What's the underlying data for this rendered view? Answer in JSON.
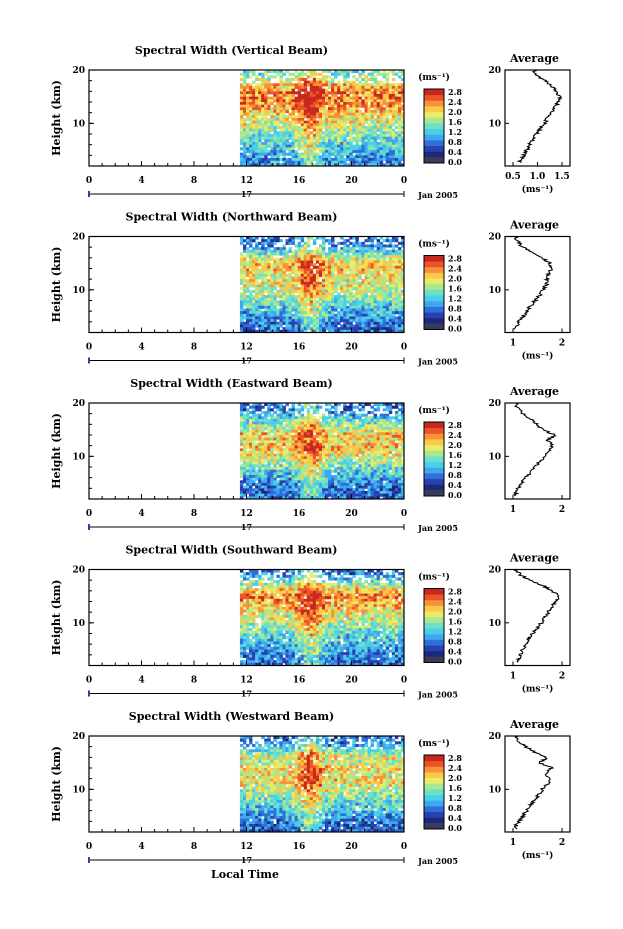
{
  "page": {
    "xaxis_label": "Local Time",
    "date_label": "Jan 2005",
    "day_label": "17"
  },
  "colors": {
    "colormap": [
      "#1a2a7a",
      "#2a3fb0",
      "#2f6fd8",
      "#3fa6f0",
      "#49cfe8",
      "#6fe0c8",
      "#a8e890",
      "#e8ec6a",
      "#fbc84a",
      "#f89238",
      "#ec5428",
      "#c8281e"
    ],
    "zero_color": "#3a3a5a",
    "profile_line": "#000000"
  },
  "chart_data": [
    {
      "type": "heatmap",
      "title": "Spectral Width (Vertical Beam)",
      "ylabel": "Height (km)",
      "xlim": [
        0,
        24
      ],
      "xticks": [
        "0",
        "4",
        "8",
        "12",
        "16",
        "20",
        "0"
      ],
      "ylim": [
        2,
        20
      ],
      "yticks": [
        "10",
        "20"
      ],
      "data_start_hour": 11.5,
      "colorbar": {
        "unit": "(ms⁻¹)",
        "ticks": [
          "2.8",
          "2.4",
          "2.0",
          "1.6",
          "1.2",
          "0.8",
          "0.4",
          "0.0"
        ]
      },
      "profile": {
        "title": "Average",
        "xlabel": "(ms⁻¹)",
        "xlim": [
          0.5,
          1.5
        ],
        "xticks": [
          "0.5",
          "1.0",
          "1.5"
        ],
        "heights": [
          3,
          4,
          5,
          6,
          7,
          8,
          9,
          10,
          11,
          12,
          13,
          14,
          15,
          16,
          17,
          18,
          19,
          20
        ],
        "values": [
          0.65,
          0.72,
          0.78,
          0.84,
          0.9,
          0.98,
          1.06,
          1.14,
          1.2,
          1.28,
          1.36,
          1.42,
          1.45,
          1.38,
          1.3,
          1.15,
          0.98,
          0.92
        ]
      }
    },
    {
      "type": "heatmap",
      "title": "Spectral Width (Northward Beam)",
      "ylabel": "Height (km)",
      "xlim": [
        0,
        24
      ],
      "xticks": [
        "0",
        "4",
        "8",
        "12",
        "16",
        "20",
        "0"
      ],
      "ylim": [
        2,
        20
      ],
      "yticks": [
        "10",
        "20"
      ],
      "data_start_hour": 11.5,
      "colorbar": {
        "unit": "(ms⁻¹)",
        "ticks": [
          "2.8",
          "2.4",
          "2.0",
          "1.6",
          "1.2",
          "0.8",
          "0.4",
          "0.0"
        ]
      },
      "profile": {
        "title": "Average",
        "xlabel": "(ms⁻¹)",
        "xlim": [
          1,
          2
        ],
        "xticks": [
          "1",
          "2"
        ],
        "heights": [
          3,
          4,
          5,
          6,
          7,
          8,
          9,
          10,
          11,
          12,
          13,
          14,
          15,
          16,
          17,
          18,
          19,
          20
        ],
        "values": [
          1.05,
          1.12,
          1.2,
          1.28,
          1.36,
          1.45,
          1.55,
          1.62,
          1.68,
          1.7,
          1.72,
          1.8,
          1.75,
          1.6,
          1.4,
          1.2,
          1.1,
          1.05
        ]
      }
    },
    {
      "type": "heatmap",
      "title": "Spectral Width (Eastward Beam)",
      "ylabel": "Height (km)",
      "xlim": [
        0,
        24
      ],
      "xticks": [
        "0",
        "4",
        "8",
        "12",
        "16",
        "20",
        "0"
      ],
      "ylim": [
        2,
        20
      ],
      "yticks": [
        "10",
        "20"
      ],
      "data_start_hour": 11.5,
      "colorbar": {
        "unit": "(ms⁻¹)",
        "ticks": [
          "2.8",
          "2.4",
          "2.0",
          "1.6",
          "1.2",
          "0.8",
          "0.4",
          "0.0"
        ]
      },
      "profile": {
        "title": "Average",
        "xlabel": "",
        "xlim": [
          1,
          2
        ],
        "xticks": [
          "1",
          "2"
        ],
        "heights": [
          3,
          4,
          5,
          6,
          7,
          8,
          9,
          10,
          11,
          12,
          13,
          14,
          15,
          16,
          17,
          18,
          19,
          20
        ],
        "values": [
          1.05,
          1.1,
          1.18,
          1.26,
          1.35,
          1.45,
          1.55,
          1.65,
          1.75,
          1.8,
          1.7,
          1.85,
          1.6,
          1.5,
          1.35,
          1.2,
          1.1,
          1.05
        ]
      }
    },
    {
      "type": "heatmap",
      "title": "Spectral Width (Southward Beam)",
      "ylabel": "Height (km)",
      "xlim": [
        0,
        24
      ],
      "xticks": [
        "0",
        "4",
        "8",
        "12",
        "16",
        "20",
        "0"
      ],
      "ylim": [
        2,
        20
      ],
      "yticks": [
        "10",
        "20"
      ],
      "data_start_hour": 11.5,
      "colorbar": {
        "unit": "(ms⁻¹)",
        "ticks": [
          "2.8",
          "2.4",
          "2.0",
          "1.6",
          "1.2",
          "0.8",
          "0.4",
          "0.0"
        ]
      },
      "profile": {
        "title": "Average",
        "xlabel": "(ms⁻¹)",
        "xlim": [
          1,
          2
        ],
        "xticks": [
          "1",
          "2"
        ],
        "heights": [
          3,
          4,
          5,
          6,
          7,
          8,
          9,
          10,
          11,
          12,
          13,
          14,
          15,
          16,
          17,
          18,
          19,
          20
        ],
        "values": [
          1.1,
          1.15,
          1.2,
          1.25,
          1.32,
          1.4,
          1.5,
          1.58,
          1.65,
          1.72,
          1.8,
          1.85,
          1.95,
          1.8,
          1.6,
          1.35,
          1.15,
          1.05
        ]
      }
    },
    {
      "type": "heatmap",
      "title": "Spectral Width (Westward Beam)",
      "ylabel": "Height (km)",
      "xlim": [
        0,
        24
      ],
      "xticks": [
        "0",
        "4",
        "8",
        "12",
        "16",
        "20",
        "0"
      ],
      "ylim": [
        2,
        20
      ],
      "yticks": [
        "10",
        "20"
      ],
      "data_start_hour": 11.5,
      "colorbar": {
        "unit": "(ms⁻¹)",
        "ticks": [
          "2.8",
          "2.4",
          "2.0",
          "1.6",
          "1.2",
          "0.8",
          "0.4",
          "0.0"
        ]
      },
      "profile": {
        "title": "Average",
        "xlabel": "(ms⁻¹)",
        "xlim": [
          1,
          2
        ],
        "xticks": [
          "1",
          "2"
        ],
        "heights": [
          3,
          4,
          5,
          6,
          7,
          8,
          9,
          10,
          11,
          12,
          13,
          14,
          15,
          16,
          17,
          18,
          19,
          20
        ],
        "values": [
          1.05,
          1.12,
          1.2,
          1.28,
          1.36,
          1.44,
          1.52,
          1.6,
          1.7,
          1.75,
          1.65,
          1.8,
          1.55,
          1.7,
          1.45,
          1.25,
          1.1,
          1.05
        ]
      }
    }
  ]
}
